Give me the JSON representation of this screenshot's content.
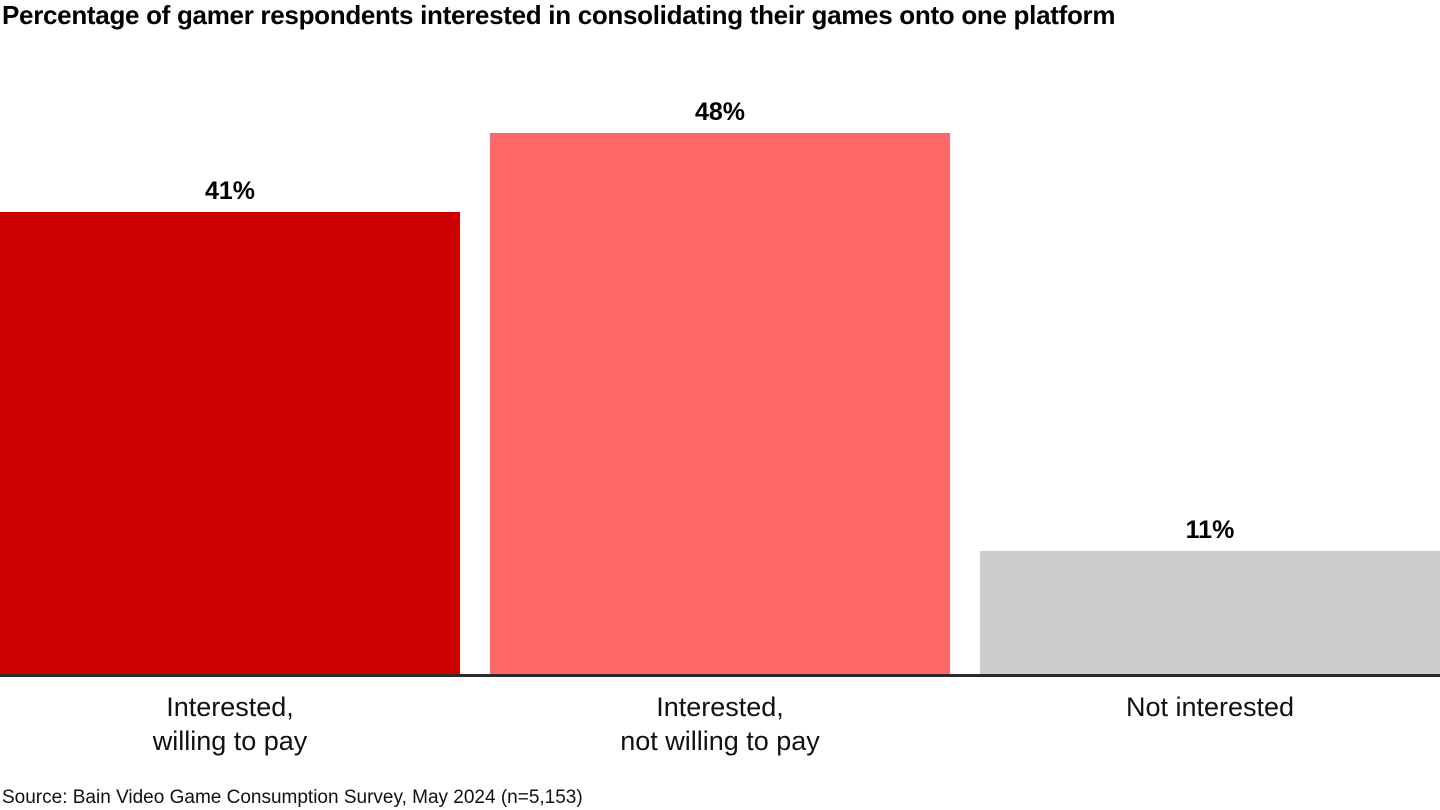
{
  "title": "Percentage of gamer respondents interested in consolidating their games onto one platform",
  "source": "Source: Bain Video Game Consumption Survey, May 2024 (n=5,153)",
  "bars": [
    {
      "category_line1": "Interested,",
      "category_line2": "willing to pay",
      "label": "41%",
      "value": 41,
      "color": "#cc0000"
    },
    {
      "category_line1": "Interested,",
      "category_line2": "not willing to pay",
      "label": "48%",
      "value": 48,
      "color": "#ff6868"
    },
    {
      "category_line1": "Not interested",
      "category_line2": "",
      "label": "11%",
      "value": 11,
      "color": "#cccccc"
    }
  ],
  "chart_data": {
    "type": "bar",
    "title": "Percentage of gamer respondents interested in consolidating their games onto one platform",
    "categories": [
      "Interested, willing to pay",
      "Interested, not willing to pay",
      "Not interested"
    ],
    "values": [
      41,
      48,
      11
    ],
    "data_labels": [
      "41%",
      "48%",
      "11%"
    ],
    "colors": [
      "#cc0000",
      "#ff6868",
      "#cccccc"
    ],
    "xlabel": "",
    "ylabel": "",
    "ylim": [
      0,
      55
    ],
    "grid": false,
    "legend": "none",
    "annotations": [
      "Source: Bain Video Game Consumption Survey, May 2024 (n=5,153)"
    ]
  }
}
